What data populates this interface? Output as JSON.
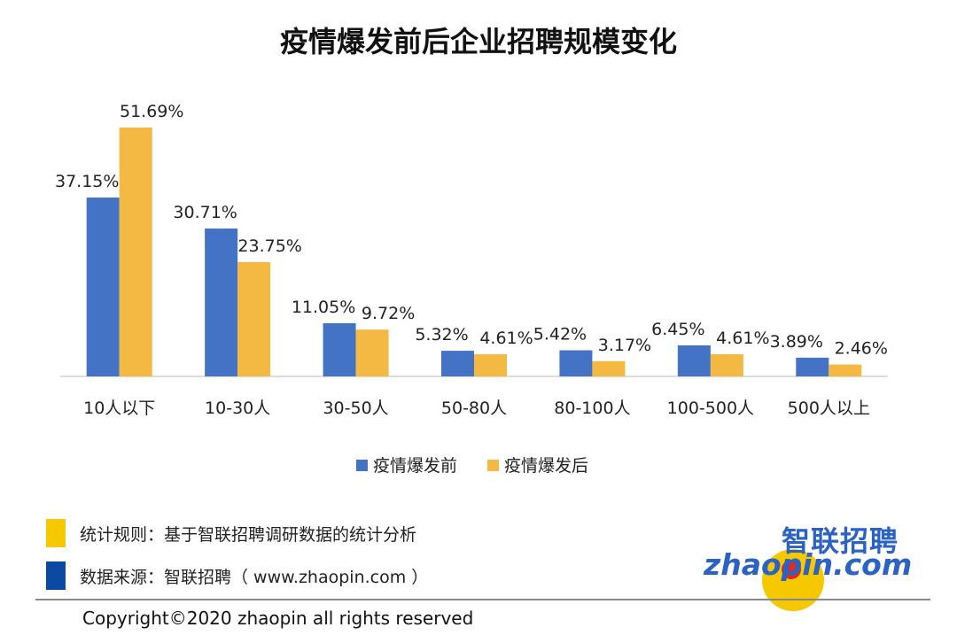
{
  "title": "疫情爆发前后企业招聘规模变化",
  "colors": {
    "before": "#4472c4",
    "after": "#f4b942",
    "note1": "#f6c800",
    "note2": "#0b4aa2"
  },
  "chart_data": {
    "type": "bar",
    "categories": [
      "10人以下",
      "10-30人",
      "30-50人",
      "50-80人",
      "80-100人",
      "100-500人",
      "500人以上"
    ],
    "series": [
      {
        "name": "疫情爆发前",
        "values": [
          37.15,
          30.71,
          11.05,
          5.32,
          5.42,
          6.45,
          3.89
        ],
        "labels": [
          "37.15%",
          "30.71%",
          "11.05%",
          "5.32%",
          "5.42%",
          "6.45%",
          "3.89%"
        ]
      },
      {
        "name": "疫情爆发后",
        "values": [
          51.69,
          23.75,
          9.72,
          4.61,
          3.17,
          4.61,
          2.46
        ],
        "labels": [
          "51.69%",
          "23.75%",
          "9.72%",
          "4.61%",
          "3.17%",
          "4.61%",
          "2.46%"
        ]
      }
    ],
    "unit": "%",
    "ylim": [
      0,
      55
    ],
    "grid": false,
    "legend": "bottom"
  },
  "notes": [
    {
      "text": "统计规则：基于智联招聘调研数据的统计分析"
    },
    {
      "text": "数据来源：智联招聘（ www.zhaopin.com ）"
    }
  ],
  "logo": {
    "cn": "智联招聘",
    "en": "zhaopin.com"
  },
  "copyright": "Copyright©2020 zhaopin all rights reserved"
}
